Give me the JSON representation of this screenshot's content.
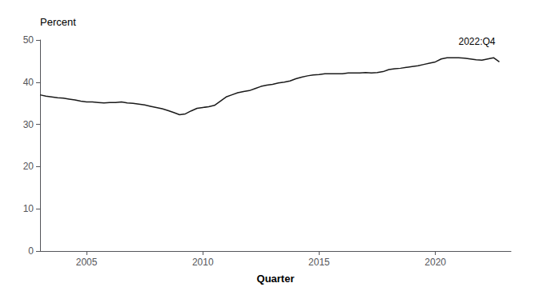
{
  "chart_data": {
    "type": "line",
    "xlabel": "Quarter",
    "ylabel": "Percent",
    "annotation": "2022:Q4",
    "color": "#1a1a1a",
    "grid": false,
    "xlim": [
      2003.0,
      2023.25
    ],
    "xticks": [
      2005,
      2010,
      2015,
      2020
    ],
    "ylim": [
      0,
      50
    ],
    "yticks": [
      0,
      10,
      20,
      30,
      40,
      50
    ],
    "x": [
      2003.0,
      2003.25,
      2003.5,
      2003.75,
      2004.0,
      2004.25,
      2004.5,
      2004.75,
      2005.0,
      2005.25,
      2005.5,
      2005.75,
      2006.0,
      2006.25,
      2006.5,
      2006.75,
      2007.0,
      2007.25,
      2007.5,
      2007.75,
      2008.0,
      2008.25,
      2008.5,
      2008.75,
      2009.0,
      2009.25,
      2009.5,
      2009.75,
      2010.0,
      2010.25,
      2010.5,
      2010.75,
      2011.0,
      2011.25,
      2011.5,
      2011.75,
      2012.0,
      2012.25,
      2012.5,
      2012.75,
      2013.0,
      2013.25,
      2013.5,
      2013.75,
      2014.0,
      2014.25,
      2014.5,
      2014.75,
      2015.0,
      2015.25,
      2015.5,
      2015.75,
      2016.0,
      2016.25,
      2016.5,
      2016.75,
      2017.0,
      2017.25,
      2017.5,
      2017.75,
      2018.0,
      2018.25,
      2018.5,
      2018.75,
      2019.0,
      2019.25,
      2019.5,
      2019.75,
      2020.0,
      2020.25,
      2020.5,
      2020.75,
      2021.0,
      2021.25,
      2021.5,
      2021.75,
      2022.0,
      2022.25,
      2022.5,
      2022.75
    ],
    "values": [
      37.0,
      36.7,
      36.5,
      36.3,
      36.2,
      36.0,
      35.8,
      35.5,
      35.3,
      35.3,
      35.2,
      35.1,
      35.2,
      35.2,
      35.3,
      35.1,
      35.0,
      34.8,
      34.6,
      34.3,
      34.0,
      33.7,
      33.3,
      32.8,
      32.3,
      32.5,
      33.2,
      33.8,
      34.0,
      34.2,
      34.5,
      35.5,
      36.5,
      37.0,
      37.5,
      37.8,
      38.0,
      38.5,
      39.0,
      39.3,
      39.5,
      39.8,
      40.0,
      40.3,
      40.8,
      41.2,
      41.5,
      41.7,
      41.8,
      42.0,
      42.0,
      42.0,
      42.0,
      42.2,
      42.2,
      42.2,
      42.3,
      42.2,
      42.3,
      42.5,
      43.0,
      43.2,
      43.3,
      43.5,
      43.7,
      43.9,
      44.2,
      44.5,
      44.8,
      45.5,
      45.8,
      45.8,
      45.8,
      45.7,
      45.5,
      45.3,
      45.2,
      45.5,
      45.8,
      44.8
    ]
  }
}
